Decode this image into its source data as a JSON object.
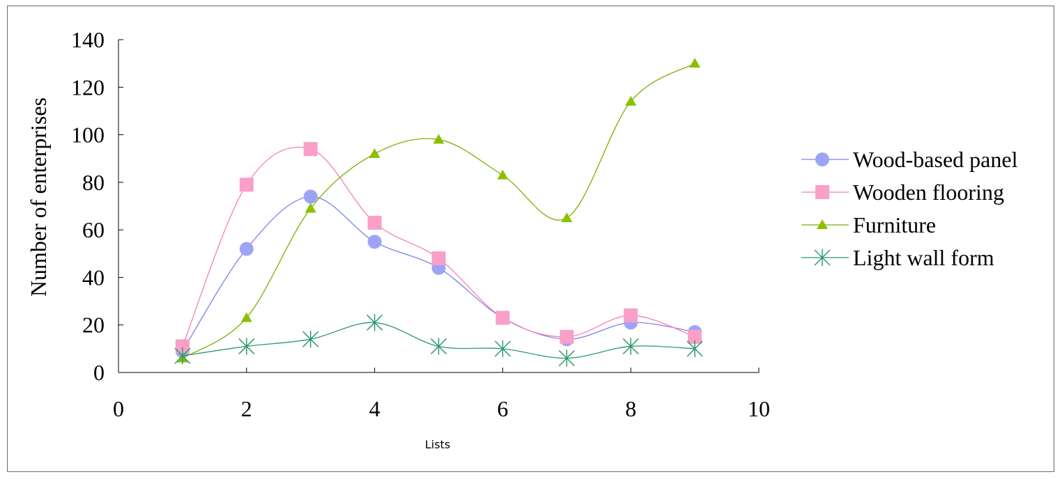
{
  "chart_data": {
    "type": "scatter",
    "xlabel": "Lists",
    "ylabel": "Number of enterprises",
    "xlim": [
      0,
      10
    ],
    "ylim": [
      0,
      140
    ],
    "xticks": [
      "0",
      "2",
      "4",
      "6",
      "8",
      "10"
    ],
    "yticks": [
      "0",
      "20",
      "40",
      "60",
      "80",
      "100",
      "120",
      "140"
    ],
    "grid": false,
    "legend_position": "right",
    "smoothed_lines": true,
    "series": [
      {
        "name": "Wood-based panel",
        "color": "#9ea4f5",
        "line_color": "#7c82e6",
        "marker": "circle",
        "x": [
          1,
          2,
          3,
          4,
          5,
          6,
          7,
          8,
          9
        ],
        "y": [
          9,
          52,
          74,
          55,
          44,
          23,
          14,
          21,
          17
        ]
      },
      {
        "name": "Wooden flooring",
        "color": "#f99fc9",
        "line_color": "#f47fb7",
        "marker": "square",
        "x": [
          1,
          2,
          3,
          4,
          5,
          6,
          7,
          8,
          9
        ],
        "y": [
          11,
          79,
          94,
          63,
          48,
          23,
          15,
          24,
          15
        ]
      },
      {
        "name": "Furniture",
        "color": "#8cbf00",
        "line_color": "#7ab000",
        "marker": "triangle",
        "x": [
          1,
          2,
          3,
          4,
          5,
          6,
          7,
          8,
          9
        ],
        "y": [
          6,
          23,
          69,
          92,
          98,
          83,
          65,
          114,
          130
        ]
      },
      {
        "name": "Light wall form",
        "color": "#2e9a6e",
        "line_color": "#2e9a6e",
        "marker": "asterisk",
        "x": [
          1,
          2,
          3,
          4,
          5,
          6,
          7,
          8,
          9
        ],
        "y": [
          7,
          11,
          14,
          21,
          11,
          10,
          6,
          11,
          10
        ]
      }
    ]
  }
}
